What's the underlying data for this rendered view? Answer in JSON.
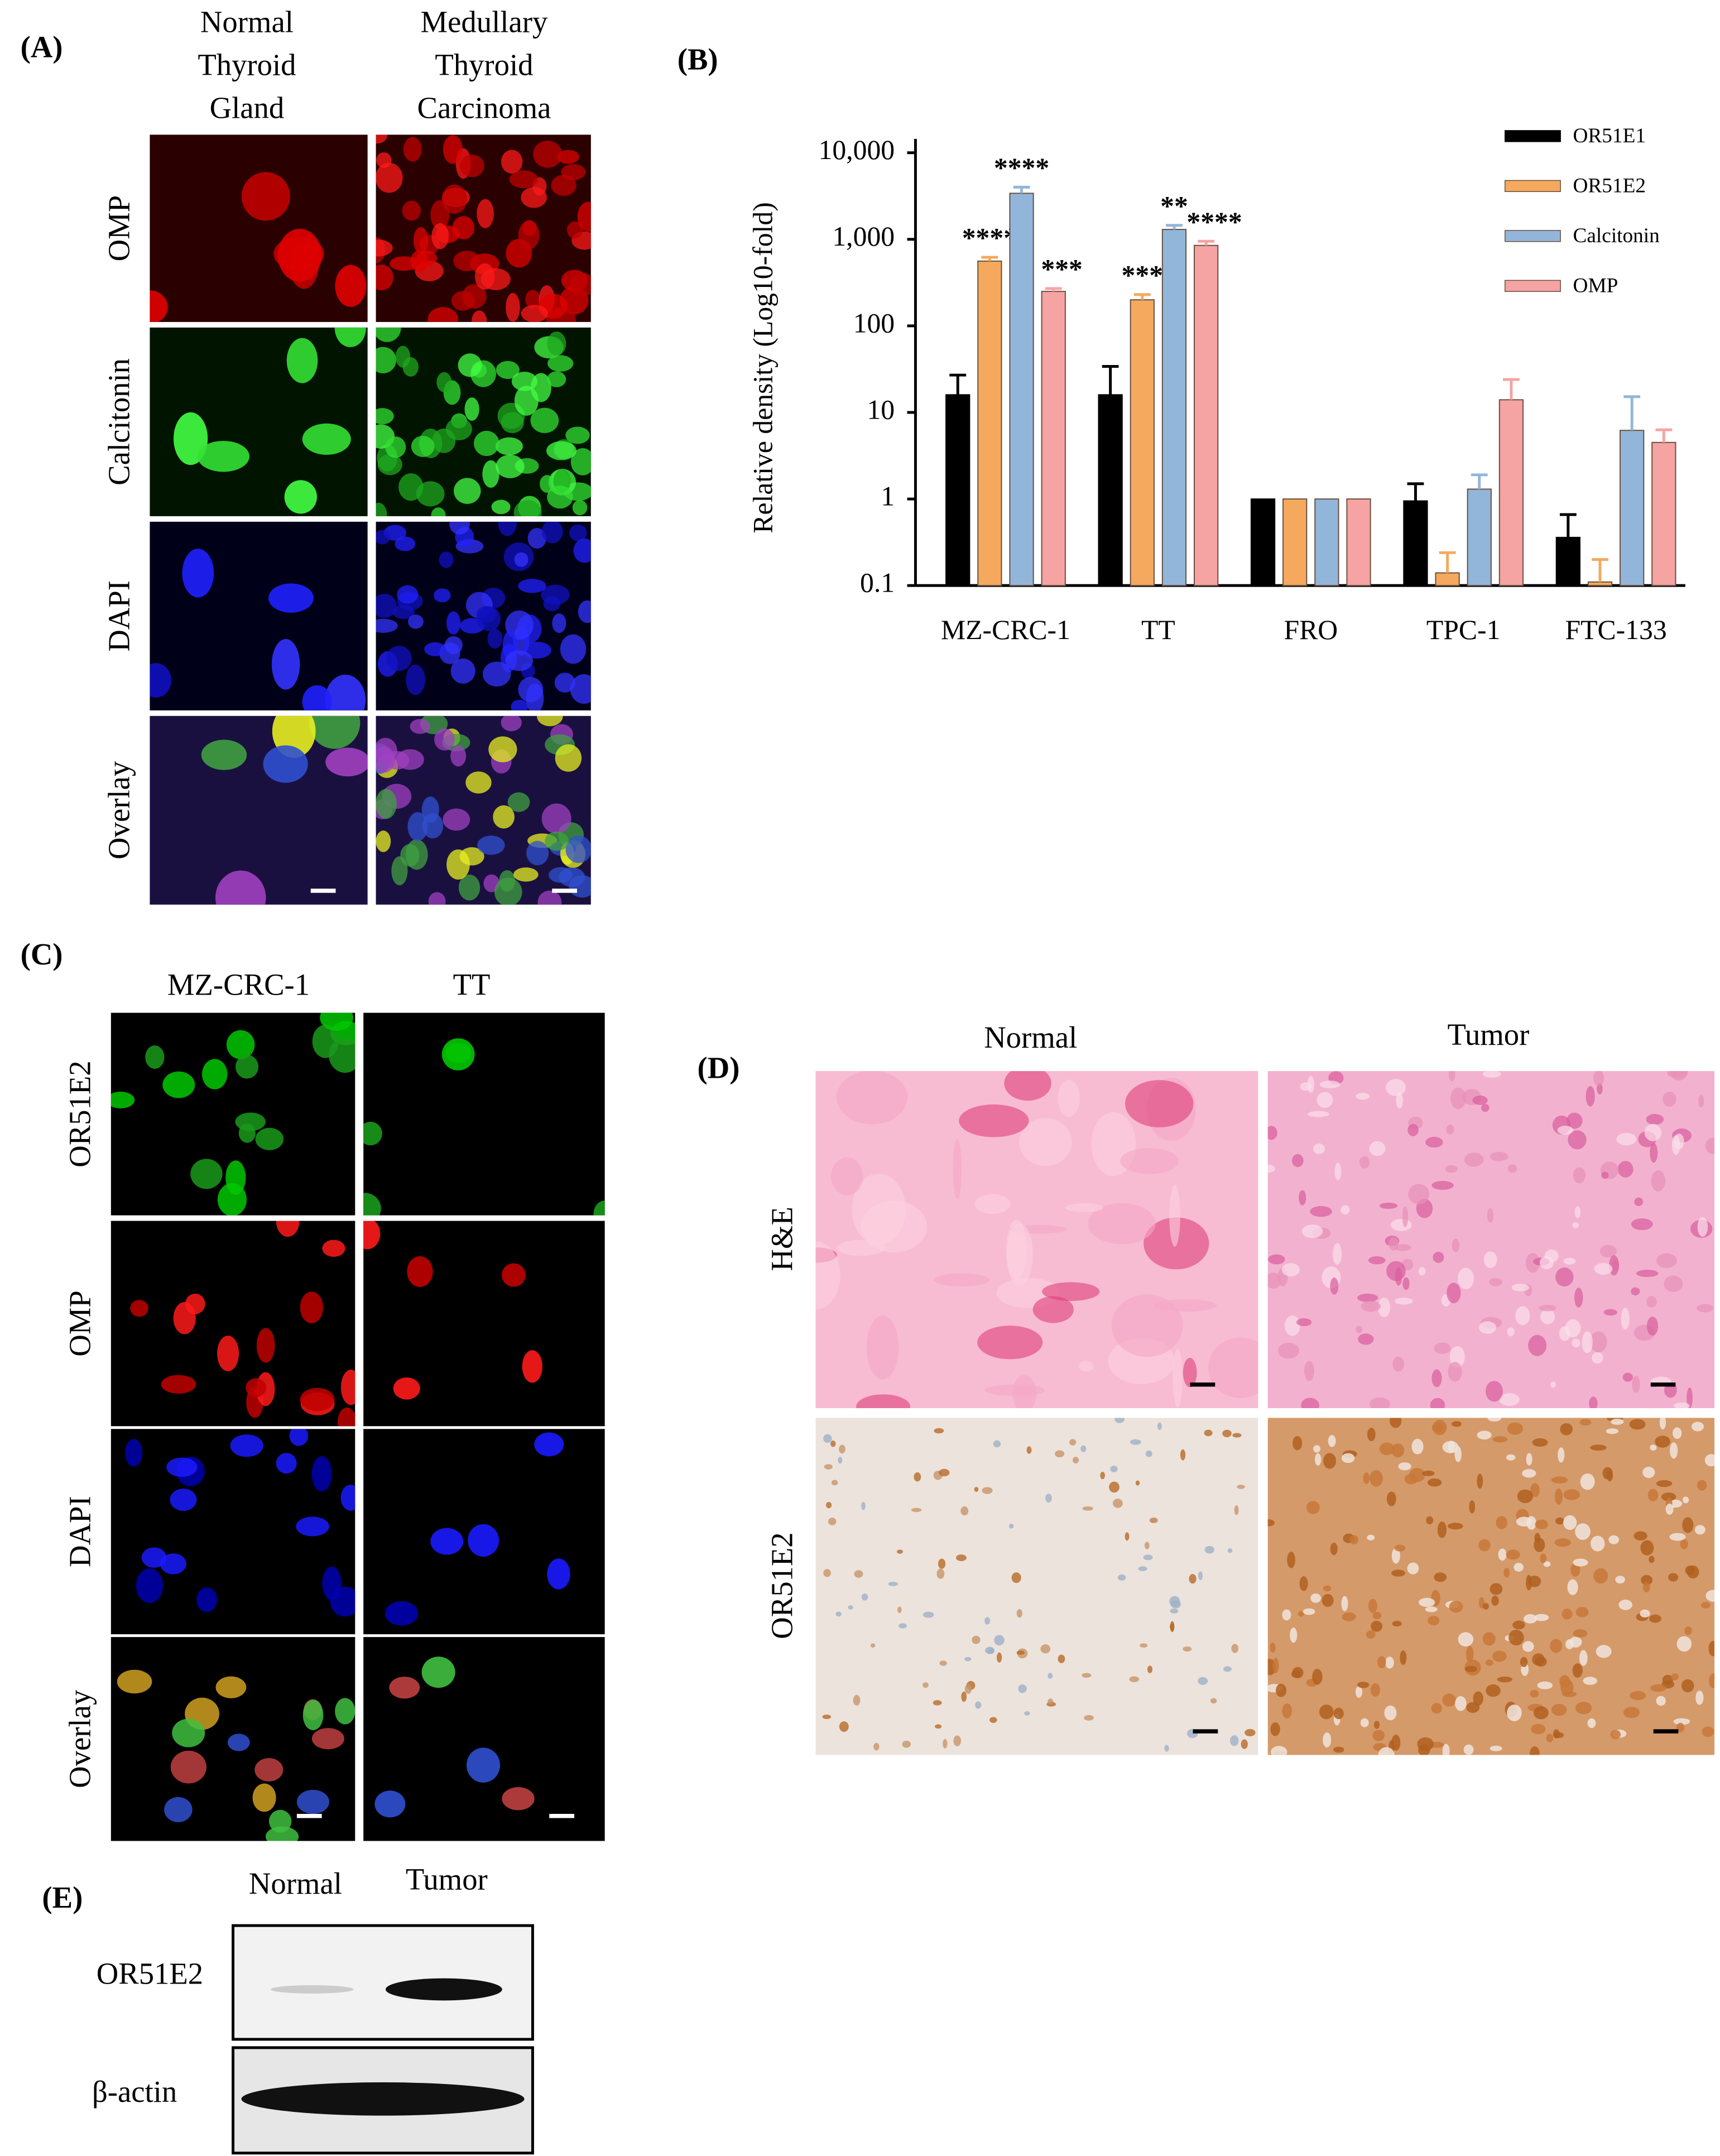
{
  "panels": {
    "A": {
      "label": "(A)",
      "columns": [
        [
          "Normal",
          "Thyroid",
          "Gland"
        ],
        [
          "Medullary",
          "Thyroid",
          "Carcinoma"
        ]
      ],
      "rows": [
        "OMP",
        "Calcitonin",
        "DAPI",
        "Overlay"
      ]
    },
    "C": {
      "label": "(C)",
      "columns": [
        "MZ-CRC-1",
        "TT"
      ],
      "rows": [
        "OR51E2",
        "OMP",
        "DAPI",
        "Overlay"
      ]
    },
    "D": {
      "label": "(D)",
      "columns": [
        "Normal",
        "Tumor"
      ],
      "rows": [
        "H&E",
        "OR51E2"
      ]
    },
    "E": {
      "label": "(E)",
      "columns": [
        "Normal",
        "Tumor"
      ],
      "rows": [
        "OR51E2",
        "β-actin"
      ]
    }
  },
  "chart_data": {
    "type": "bar",
    "panel_label": "(B)",
    "y_label": "Relative density (Log10-fold)",
    "categories": [
      "MZ-CRC-1",
      "TT",
      "FRO",
      "TPC-1",
      "FTC-133"
    ],
    "log_scale": true,
    "ylim": [
      0.1,
      10000
    ],
    "yticks": [
      0.1,
      1,
      10,
      100,
      {
        "value": 1000,
        "label": "1,000"
      },
      {
        "value": 10000,
        "label": "10,000"
      }
    ],
    "legend_position": "upper right",
    "series": [
      {
        "name": "OR51E1",
        "color": "#000000",
        "values": [
          16,
          16,
          1,
          0.95,
          0.36
        ],
        "errors": [
          11,
          18,
          0,
          0.55,
          0.3
        ],
        "significance": [
          null,
          null,
          null,
          null,
          null
        ]
      },
      {
        "name": "OR51E2",
        "color": "#f5a95e",
        "values": [
          560,
          200,
          1,
          0.14,
          0.11
        ],
        "errors": [
          60,
          30,
          0,
          0.1,
          0.09
        ],
        "significance": [
          "****",
          "***",
          null,
          null,
          null
        ]
      },
      {
        "name": "Calcitonin",
        "color": "#92b6da",
        "values": [
          3400,
          1300,
          1,
          1.3,
          6.2
        ],
        "errors": [
          600,
          150,
          0,
          0.6,
          9
        ],
        "significance": [
          "****",
          "**",
          null,
          null,
          null
        ]
      },
      {
        "name": "OMP",
        "color": "#f6a3a3",
        "values": [
          250,
          850,
          1,
          14,
          4.5
        ],
        "errors": [
          20,
          100,
          0,
          10,
          1.8
        ],
        "significance": [
          "***",
          "****",
          null,
          null,
          null
        ]
      }
    ]
  }
}
